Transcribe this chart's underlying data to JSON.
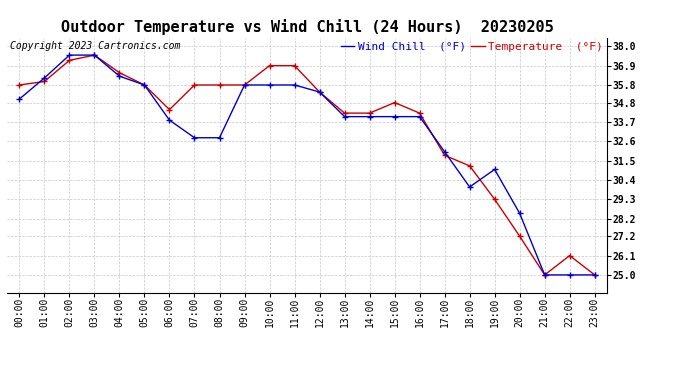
{
  "title": "Outdoor Temperature vs Wind Chill (24 Hours)  20230205",
  "copyright": "Copyright 2023 Cartronics.com",
  "legend_wind_chill": "Wind Chill  (°F)",
  "legend_temperature": "Temperature  (°F)",
  "x_labels": [
    "00:00",
    "01:00",
    "02:00",
    "03:00",
    "04:00",
    "05:00",
    "06:00",
    "07:00",
    "08:00",
    "09:00",
    "10:00",
    "11:00",
    "12:00",
    "13:00",
    "14:00",
    "15:00",
    "16:00",
    "17:00",
    "18:00",
    "19:00",
    "20:00",
    "21:00",
    "22:00",
    "23:00"
  ],
  "temperature": [
    35.8,
    36.0,
    37.2,
    37.5,
    36.5,
    35.8,
    34.4,
    35.8,
    35.8,
    35.8,
    36.9,
    36.9,
    35.4,
    34.2,
    34.2,
    34.8,
    34.2,
    31.8,
    31.2,
    29.3,
    27.2,
    25.0,
    26.1,
    25.0
  ],
  "wind_chill": [
    35.0,
    36.2,
    37.5,
    37.5,
    36.3,
    35.8,
    33.8,
    32.8,
    32.8,
    35.8,
    35.8,
    35.8,
    35.4,
    34.0,
    34.0,
    34.0,
    34.0,
    32.0,
    30.0,
    31.0,
    28.5,
    25.0,
    25.0,
    25.0
  ],
  "temp_color": "#cc0000",
  "wind_color": "#0000cc",
  "ylim_min": 24.0,
  "ylim_max": 38.5,
  "yticks": [
    25.0,
    26.1,
    27.2,
    28.2,
    29.3,
    30.4,
    31.5,
    32.6,
    33.7,
    34.8,
    35.8,
    36.9,
    38.0
  ],
  "bg_color": "#ffffff",
  "grid_color": "#bbbbbb",
  "title_fontsize": 11,
  "legend_fontsize": 8,
  "copyright_fontsize": 7,
  "tick_fontsize": 7,
  "ytick_fontsize": 7
}
